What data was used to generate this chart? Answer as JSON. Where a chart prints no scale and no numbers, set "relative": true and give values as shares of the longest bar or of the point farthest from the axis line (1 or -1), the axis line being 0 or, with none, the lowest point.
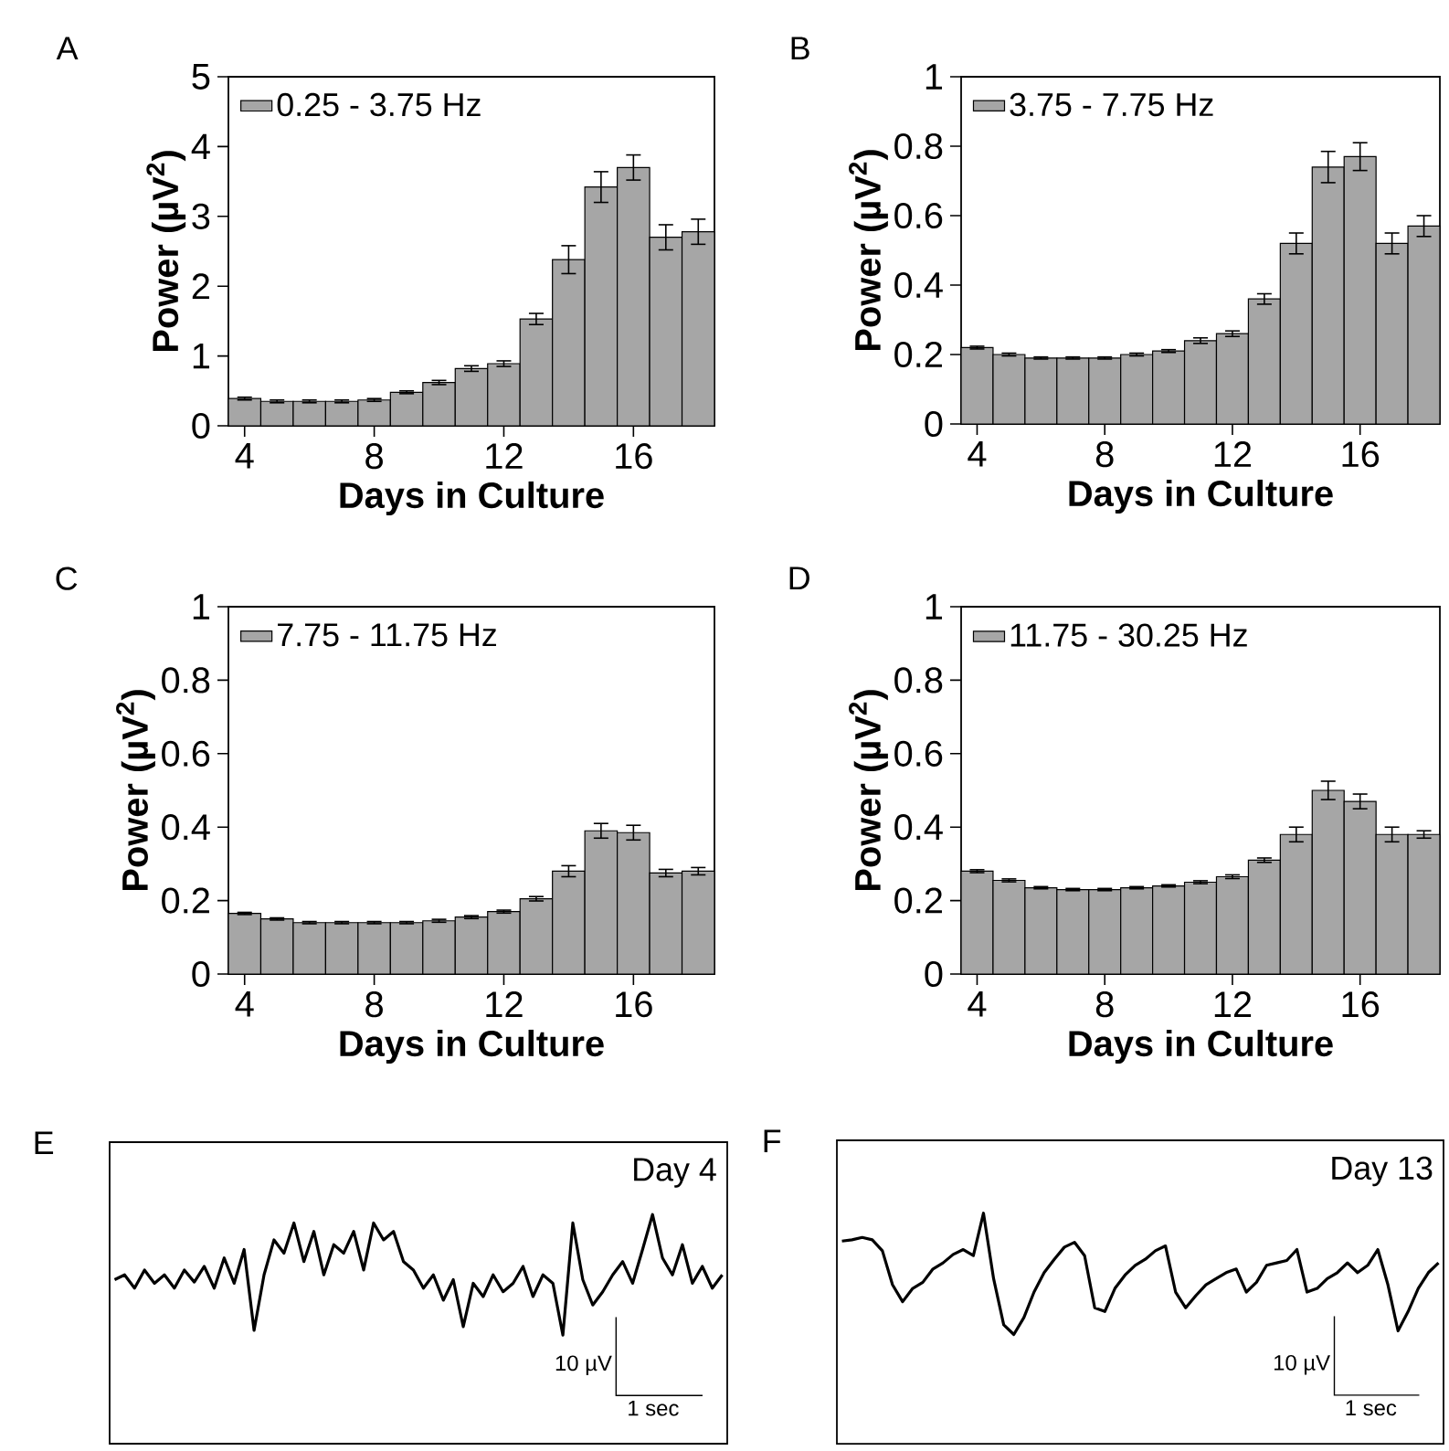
{
  "chart_data": [
    {
      "type": "bar",
      "annotations": [
        "A"
      ],
      "xlabel": "Days in Culture",
      "ylabel": "Power (µV$^{2}$)",
      "x": [
        4,
        5,
        6,
        7,
        8,
        9,
        10,
        11,
        12,
        13,
        14,
        15,
        16,
        17,
        18
      ],
      "xlim": [
        3.5,
        18.5
      ],
      "xticks": [
        4,
        8,
        12,
        16
      ],
      "ylim": [
        0,
        5
      ],
      "yticks": [
        0,
        1,
        2,
        3,
        4,
        5
      ],
      "legend": "top left",
      "series": [
        {
          "name": "0.25 - 3.75 Hz",
          "color": "#a6a6a6",
          "values": [
            0.39,
            0.35,
            0.35,
            0.35,
            0.37,
            0.48,
            0.62,
            0.82,
            0.89,
            1.53,
            2.38,
            3.42,
            3.7,
            2.7,
            2.78
          ],
          "errors": [
            0.02,
            0.02,
            0.02,
            0.02,
            0.02,
            0.02,
            0.03,
            0.04,
            0.04,
            0.08,
            0.2,
            0.22,
            0.18,
            0.18,
            0.18
          ]
        }
      ]
    },
    {
      "type": "bar",
      "annotations": [
        "B"
      ],
      "xlabel": "Days in Culture",
      "ylabel": "Power (µV$^{2}$)",
      "x": [
        4,
        5,
        6,
        7,
        8,
        9,
        10,
        11,
        12,
        13,
        14,
        15,
        16,
        17,
        18
      ],
      "xlim": [
        3.5,
        18.5
      ],
      "xticks": [
        4,
        8,
        12,
        16
      ],
      "ylim": [
        0,
        1
      ],
      "yticks": [
        0,
        0.2,
        0.4,
        0.6,
        0.8,
        1
      ],
      "legend": "top left",
      "series": [
        {
          "name": "3.75 - 7.75 Hz",
          "color": "#a6a6a6",
          "values": [
            0.22,
            0.2,
            0.19,
            0.19,
            0.19,
            0.2,
            0.21,
            0.24,
            0.26,
            0.36,
            0.52,
            0.74,
            0.77,
            0.52,
            0.57
          ],
          "errors": [
            0.004,
            0.004,
            0.003,
            0.003,
            0.003,
            0.004,
            0.004,
            0.008,
            0.008,
            0.015,
            0.03,
            0.045,
            0.04,
            0.03,
            0.03
          ]
        }
      ]
    },
    {
      "type": "bar",
      "annotations": [
        "C"
      ],
      "xlabel": "Days in Culture",
      "ylabel": "Power (µV$^{2}$)",
      "x": [
        4,
        5,
        6,
        7,
        8,
        9,
        10,
        11,
        12,
        13,
        14,
        15,
        16,
        17,
        18
      ],
      "xlim": [
        3.5,
        18.5
      ],
      "xticks": [
        4,
        8,
        12,
        16
      ],
      "ylim": [
        0,
        1
      ],
      "yticks": [
        0,
        0.2,
        0.4,
        0.6,
        0.8,
        1
      ],
      "legend": "top left",
      "series": [
        {
          "name": "7.75 - 11.75 Hz",
          "color": "#a6a6a6",
          "values": [
            0.165,
            0.15,
            0.14,
            0.14,
            0.14,
            0.14,
            0.145,
            0.155,
            0.17,
            0.205,
            0.28,
            0.39,
            0.385,
            0.275,
            0.28
          ],
          "errors": [
            0.003,
            0.003,
            0.003,
            0.003,
            0.003,
            0.003,
            0.004,
            0.004,
            0.004,
            0.006,
            0.015,
            0.02,
            0.02,
            0.01,
            0.01
          ]
        }
      ]
    },
    {
      "type": "bar",
      "annotations": [
        "D"
      ],
      "xlabel": "Days in Culture",
      "ylabel": "Power (µV$^{2}$)",
      "x": [
        4,
        5,
        6,
        7,
        8,
        9,
        10,
        11,
        12,
        13,
        14,
        15,
        16,
        17,
        18
      ],
      "xlim": [
        3.5,
        18.5
      ],
      "xticks": [
        4,
        8,
        12,
        16
      ],
      "ylim": [
        0,
        1
      ],
      "yticks": [
        0,
        0.2,
        0.4,
        0.6,
        0.8,
        1
      ],
      "legend": "top left",
      "series": [
        {
          "name": "11.75 - 30.25 Hz",
          "color": "#a6a6a6",
          "values": [
            0.28,
            0.255,
            0.235,
            0.23,
            0.23,
            0.235,
            0.24,
            0.25,
            0.265,
            0.31,
            0.38,
            0.5,
            0.47,
            0.38,
            0.38
          ],
          "errors": [
            0.004,
            0.004,
            0.003,
            0.003,
            0.003,
            0.003,
            0.003,
            0.004,
            0.005,
            0.006,
            0.02,
            0.025,
            0.02,
            0.02,
            0.01
          ]
        }
      ]
    },
    {
      "type": "line",
      "relative": true,
      "annotations": [
        "E",
        "Day 4",
        "10 µV",
        "1 sec"
      ],
      "categories": [
        null,
        null,
        null,
        null,
        null,
        null,
        null,
        null,
        null,
        null,
        null,
        null,
        null,
        null,
        null,
        null,
        null,
        null,
        null,
        null,
        null,
        null,
        null,
        null,
        null,
        null,
        null,
        null,
        null,
        null,
        null,
        null,
        null,
        null,
        null,
        null,
        null,
        null,
        null,
        null,
        null,
        null,
        null,
        null,
        null,
        null,
        null,
        null,
        null,
        null,
        null,
        null,
        null,
        null,
        null,
        null,
        null,
        null,
        null,
        null,
        null,
        null
      ],
      "series": [
        {
          "color": "#000000",
          "values": [
            0.46,
            0.5,
            0.39,
            0.54,
            0.43,
            0.5,
            0.39,
            0.54,
            0.44,
            0.57,
            0.39,
            0.64,
            0.43,
            0.71,
            0.04,
            0.5,
            0.79,
            0.68,
            0.93,
            0.61,
            0.86,
            0.5,
            0.75,
            0.68,
            0.86,
            0.54,
            0.93,
            0.79,
            0.86,
            0.61,
            0.54,
            0.39,
            0.5,
            0.29,
            0.46,
            0.07,
            0.43,
            0.32,
            0.5,
            0.36,
            0.43,
            0.57,
            0.32,
            0.5,
            0.43,
            0,
            0.93,
            0.46,
            0.25,
            0.36,
            0.5,
            0.61,
            0.43,
            0.71,
            1,
            0.64,
            0.5,
            0.75,
            0.43,
            0.57,
            0.39,
            0.5
          ]
        }
      ]
    },
    {
      "type": "line",
      "relative": true,
      "annotations": [
        "F",
        "Day 13",
        "10 µV",
        "1 sec"
      ],
      "categories": [
        null,
        null,
        null,
        null,
        null,
        null,
        null,
        null,
        null,
        null,
        null,
        null,
        null,
        null,
        null,
        null,
        null,
        null,
        null,
        null,
        null,
        null,
        null,
        null,
        null,
        null,
        null,
        null,
        null,
        null,
        null,
        null,
        null,
        null,
        null,
        null,
        null,
        null,
        null,
        null,
        null,
        null,
        null,
        null,
        null,
        null,
        null,
        null,
        null,
        null,
        null,
        null,
        null,
        null,
        null,
        null,
        null,
        null,
        null,
        null
      ],
      "series": [
        {
          "color": "#000000",
          "values": [
            0.77,
            0.78,
            0.8,
            0.78,
            0.69,
            0.41,
            0.27,
            0.38,
            0.43,
            0.54,
            0.59,
            0.66,
            0.7,
            0.65,
            1,
            0.46,
            0.08,
            0,
            0.14,
            0.35,
            0.51,
            0.62,
            0.72,
            0.76,
            0.65,
            0.22,
            0.19,
            0.38,
            0.49,
            0.57,
            0.62,
            0.69,
            0.73,
            0.35,
            0.22,
            0.32,
            0.41,
            0.46,
            0.51,
            0.54,
            0.35,
            0.43,
            0.57,
            0.59,
            0.61,
            0.7,
            0.35,
            0.38,
            0.46,
            0.51,
            0.59,
            0.51,
            0.57,
            0.7,
            0.41,
            0.03,
            0.19,
            0.38,
            0.51,
            0.59
          ]
        }
      ]
    }
  ]
}
